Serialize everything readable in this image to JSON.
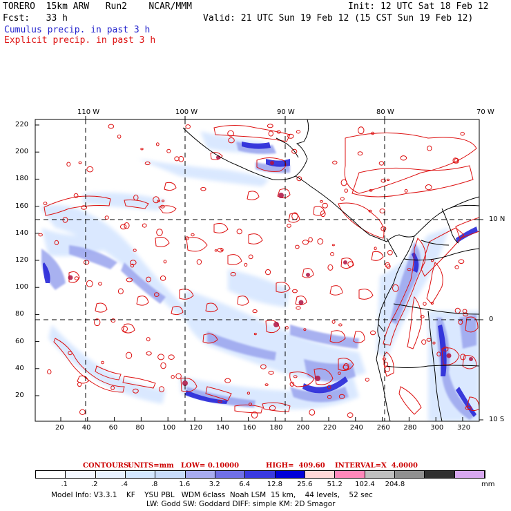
{
  "header": {
    "model": "TORERO  15km ARW   Run2    NCAR/MMM",
    "init": "Init: 12 UTC Sat 18 Feb 12",
    "fcst": "Fcst:   33 h",
    "valid": "Valid: 21 UTC Sun 19 Feb 12 (15 CST Sun 19 Feb 12)",
    "cumulus": "Cumulus precip. in past 3 h",
    "explicit": "Explicit precip. in past 3 h"
  },
  "axes": {
    "top_lon_labels": [
      "110 W",
      "100 W",
      "90 W",
      "80 W",
      "70 W"
    ],
    "right_lat_labels": [
      "10 N",
      "0",
      "10 S"
    ],
    "left_ticks": [
      "220",
      "200",
      "180",
      "160",
      "140",
      "120",
      "100",
      "80",
      "60",
      "40",
      "20"
    ],
    "bottom_ticks": [
      "20",
      "40",
      "60",
      "80",
      "100",
      "120",
      "140",
      "160",
      "180",
      "200",
      "220",
      "240",
      "260",
      "280",
      "300",
      "320"
    ]
  },
  "contours": {
    "prefix": "CONTOURS:",
    "units": "UNITS=mm",
    "low": "LOW= 0.10000",
    "high": "HIGH=  409.60",
    "interval": "INTERVAL=X  4.0000"
  },
  "colorbar": {
    "labels": [
      ".1",
      ".2",
      ".4",
      ".8",
      "1.6",
      "3.2",
      "6.4",
      "12.8",
      "25.6",
      "51.2",
      "102.4",
      "204.8"
    ],
    "unit": "mm",
    "colors": [
      "#ffffff",
      "#f4f8ff",
      "#e8f2ff",
      "#d4e8ff",
      "#c8dcfa",
      "#a8acf0",
      "#7070e6",
      "#3a3ae0",
      "#0000d8",
      "#ffd8d8",
      "#ff88bb",
      "#c0c0c0",
      "#909090",
      "#303030",
      "#d8a8f0"
    ]
  },
  "footer": {
    "line1": "Model Info: V3.3.1    KF    YSU PBL   WDM 6class  Noah LSM  15 km,    44 levels,    52 sec",
    "line2": "LW: Godd SW: Goddard DIFF: simple KM: 2D Smagor"
  },
  "colors": {
    "cumulus": "#2222cc",
    "explicit": "#dd1111",
    "coast": "#000000",
    "grid": "#000000"
  }
}
